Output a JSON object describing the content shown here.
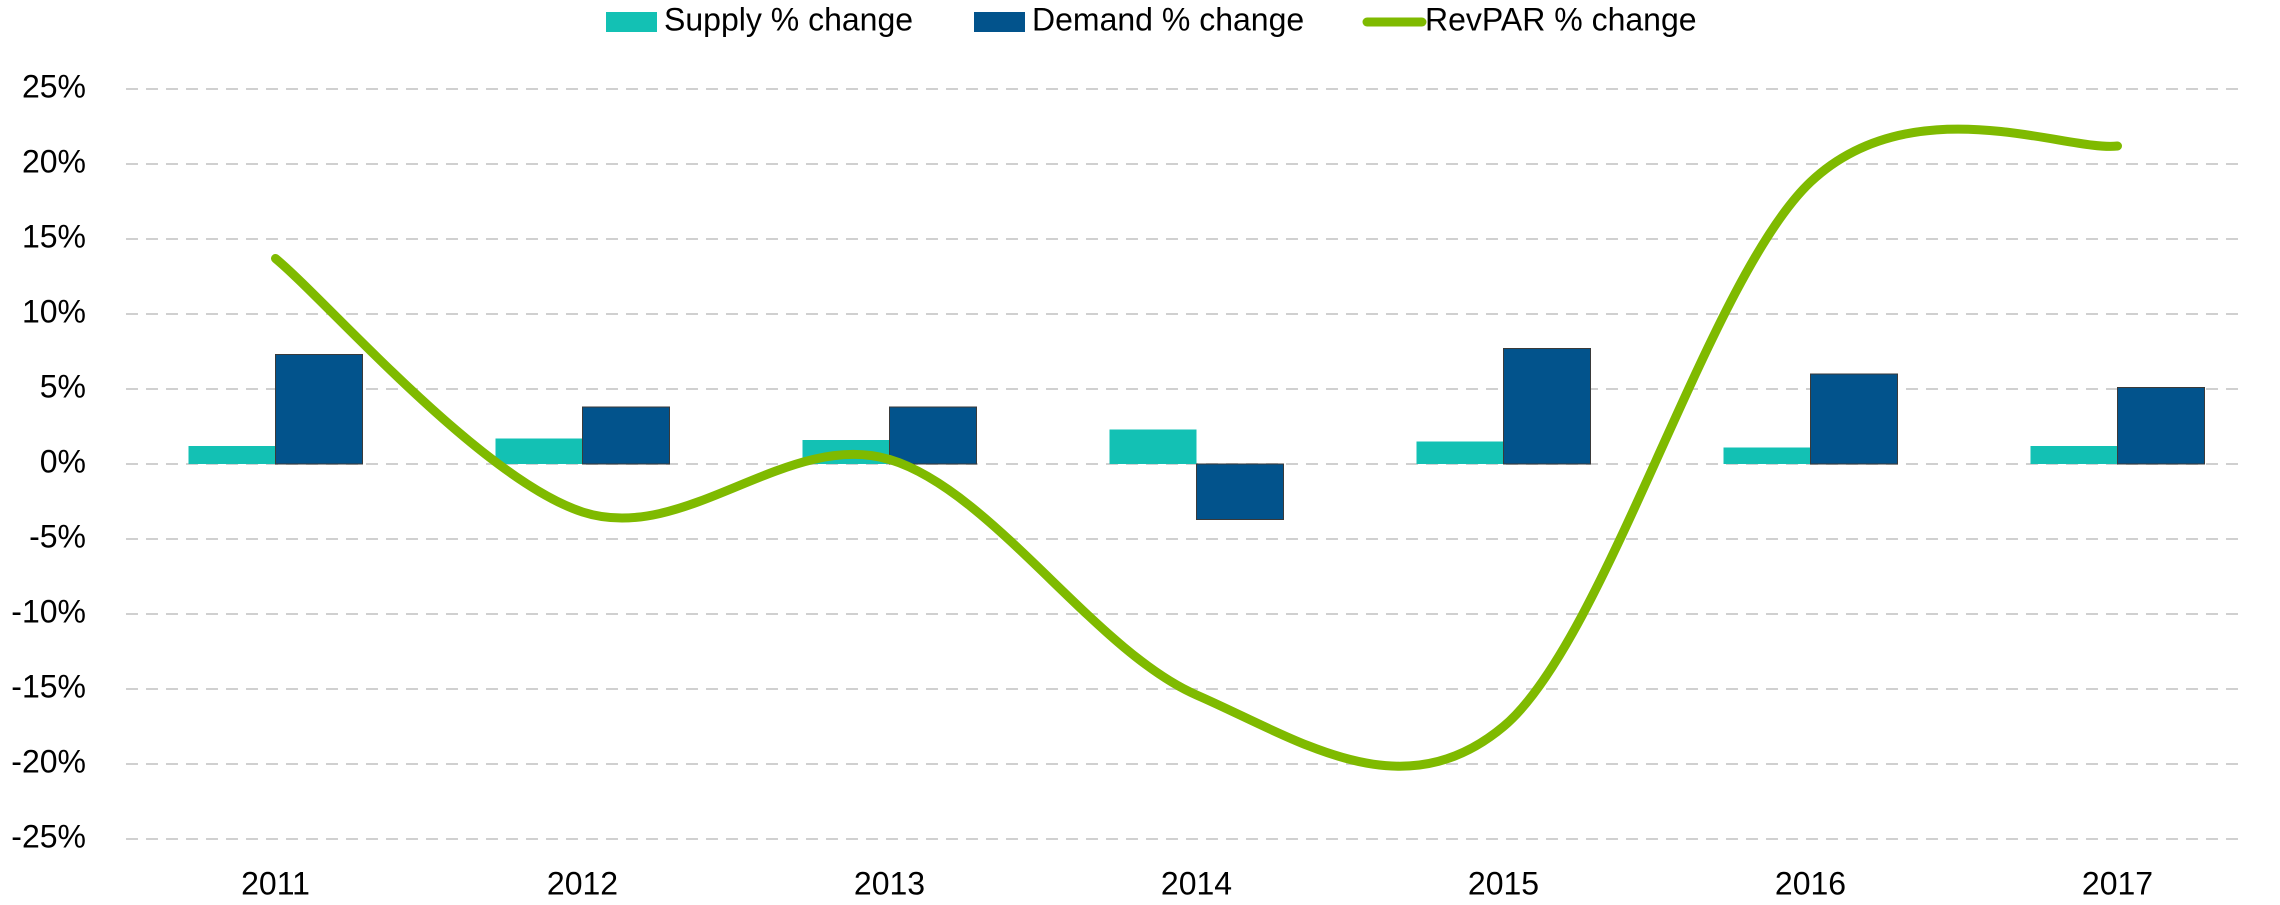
{
  "chart_data": {
    "type": "bar",
    "categories": [
      "2011",
      "2012",
      "2013",
      "2014",
      "2015",
      "2016",
      "2017"
    ],
    "series": [
      {
        "name": "Supply % change",
        "type": "bar",
        "color": "#13c1b4",
        "values": [
          1.2,
          1.7,
          1.6,
          2.3,
          1.5,
          1.1,
          1.2
        ]
      },
      {
        "name": "Demand % change",
        "type": "bar",
        "color": "#02538c",
        "values": [
          7.3,
          3.8,
          3.8,
          -3.7,
          7.7,
          6.0,
          5.1
        ]
      },
      {
        "name": "RevPAR % change",
        "type": "line",
        "color": "#7fba00",
        "values": [
          13.7,
          -3.2,
          0.3,
          -15.4,
          -17.5,
          18.8,
          21.2
        ]
      }
    ],
    "ylim": [
      -25,
      25
    ],
    "yticks": [
      {
        "value": -25,
        "label": "-25%"
      },
      {
        "value": -20,
        "label": "-20%"
      },
      {
        "value": -15,
        "label": "-15%"
      },
      {
        "value": -10,
        "label": "-10%"
      },
      {
        "value": -5,
        "label": "-5%"
      },
      {
        "value": 0,
        "label": "0%"
      },
      {
        "value": 5,
        "label": "5%"
      },
      {
        "value": 10,
        "label": "10%"
      },
      {
        "value": 15,
        "label": "15%"
      },
      {
        "value": 20,
        "label": "20%"
      },
      {
        "value": 25,
        "label": "25%"
      }
    ],
    "grid": true,
    "legend": "top"
  }
}
